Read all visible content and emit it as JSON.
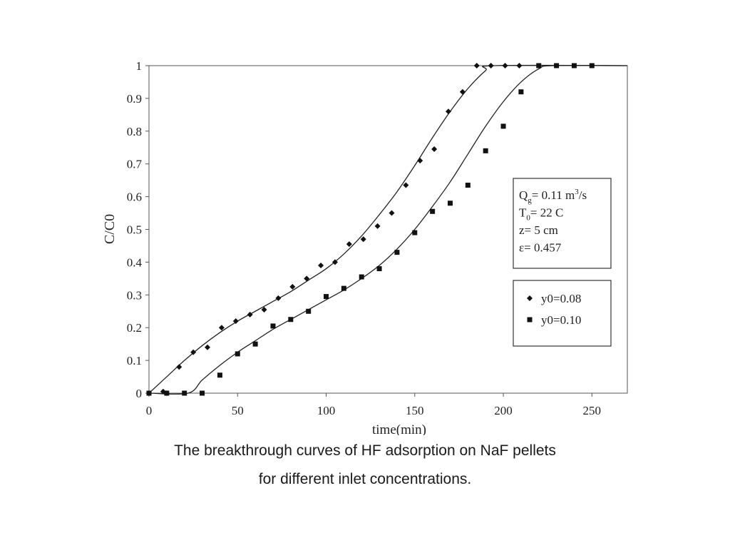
{
  "chart_data": {
    "type": "scatter",
    "title": "",
    "xlabel": "time(min)",
    "ylabel": "C/C0",
    "xlim": [
      0,
      270
    ],
    "ylim": [
      0,
      1
    ],
    "x_ticks": [
      "0",
      "50",
      "100",
      "150",
      "200",
      "250"
    ],
    "y_ticks": [
      "0",
      "0.1",
      "0.2",
      "0.3",
      "0.4",
      "0.5",
      "0.6",
      "0.7",
      "0.8",
      "0.9",
      "1"
    ],
    "grid": false,
    "legend_position": "right",
    "series": [
      {
        "name": "y0=0.08",
        "marker": "diamond",
        "points": [
          [
            0,
            0
          ],
          [
            8,
            0.005
          ],
          [
            10,
            0
          ],
          [
            17,
            0.08
          ],
          [
            25,
            0.125
          ],
          [
            33,
            0.14
          ],
          [
            41,
            0.2
          ],
          [
            49,
            0.22
          ],
          [
            57,
            0.24
          ],
          [
            65,
            0.255
          ],
          [
            73,
            0.29
          ],
          [
            81,
            0.325
          ],
          [
            89,
            0.35
          ],
          [
            97,
            0.39
          ],
          [
            105,
            0.4
          ],
          [
            113,
            0.455
          ],
          [
            121,
            0.47
          ],
          [
            129,
            0.51
          ],
          [
            137,
            0.55
          ],
          [
            145,
            0.635
          ],
          [
            153,
            0.71
          ],
          [
            161,
            0.745
          ],
          [
            169,
            0.86
          ],
          [
            177,
            0.92
          ],
          [
            185,
            1.0
          ],
          [
            193,
            1.0
          ],
          [
            201,
            1.0
          ],
          [
            209,
            1.0
          ]
        ],
        "fit": [
          [
            0,
            0
          ],
          [
            10,
            0.05
          ],
          [
            20,
            0.1
          ],
          [
            30,
            0.145
          ],
          [
            40,
            0.185
          ],
          [
            50,
            0.22
          ],
          [
            60,
            0.25
          ],
          [
            70,
            0.28
          ],
          [
            80,
            0.31
          ],
          [
            90,
            0.345
          ],
          [
            100,
            0.38
          ],
          [
            110,
            0.425
          ],
          [
            120,
            0.48
          ],
          [
            130,
            0.545
          ],
          [
            140,
            0.615
          ],
          [
            150,
            0.695
          ],
          [
            160,
            0.78
          ],
          [
            170,
            0.86
          ],
          [
            180,
            0.93
          ],
          [
            190,
            0.985
          ],
          [
            195,
            1.0
          ],
          [
            270,
            1.0
          ]
        ]
      },
      {
        "name": "y0=0.10",
        "marker": "square",
        "points": [
          [
            0,
            0
          ],
          [
            10,
            0
          ],
          [
            20,
            0
          ],
          [
            30,
            0
          ],
          [
            40,
            0.055
          ],
          [
            50,
            0.12
          ],
          [
            60,
            0.15
          ],
          [
            70,
            0.205
          ],
          [
            80,
            0.225
          ],
          [
            90,
            0.25
          ],
          [
            100,
            0.295
          ],
          [
            110,
            0.32
          ],
          [
            120,
            0.355
          ],
          [
            130,
            0.38
          ],
          [
            140,
            0.43
          ],
          [
            150,
            0.49
          ],
          [
            160,
            0.555
          ],
          [
            170,
            0.58
          ],
          [
            180,
            0.635
          ],
          [
            190,
            0.74
          ],
          [
            200,
            0.815
          ],
          [
            210,
            0.92
          ],
          [
            220,
            1.0
          ],
          [
            230,
            1.0
          ],
          [
            240,
            1.0
          ],
          [
            250,
            1.0
          ]
        ],
        "fit": [
          [
            0,
            0
          ],
          [
            22,
            0
          ],
          [
            30,
            0.04
          ],
          [
            40,
            0.085
          ],
          [
            50,
            0.125
          ],
          [
            60,
            0.16
          ],
          [
            70,
            0.195
          ],
          [
            80,
            0.225
          ],
          [
            90,
            0.255
          ],
          [
            100,
            0.285
          ],
          [
            110,
            0.315
          ],
          [
            120,
            0.35
          ],
          [
            130,
            0.39
          ],
          [
            140,
            0.44
          ],
          [
            150,
            0.5
          ],
          [
            160,
            0.57
          ],
          [
            170,
            0.645
          ],
          [
            180,
            0.73
          ],
          [
            190,
            0.815
          ],
          [
            200,
            0.89
          ],
          [
            210,
            0.95
          ],
          [
            220,
            0.99
          ],
          [
            228,
            1.0
          ],
          [
            270,
            1.0
          ]
        ]
      }
    ],
    "info_box": {
      "lines": [
        {
          "base": "Q",
          "sub": "g",
          "rest": "= 0.11 m",
          "sup": "3",
          "tail": "/s"
        },
        {
          "base": "T",
          "sub": "0",
          "rest": "= 22 C",
          "sup": "",
          "tail": ""
        },
        {
          "base": "z",
          "sub": "",
          "rest": "= 5 cm",
          "sup": "",
          "tail": ""
        },
        {
          "base": "ε",
          "sub": "",
          "rest": "= 0.457",
          "sup": "",
          "tail": ""
        }
      ]
    }
  },
  "caption": {
    "line1": "The breakthrough curves of HF adsorption on NaF pellets",
    "line2": "for different inlet concentrations."
  }
}
